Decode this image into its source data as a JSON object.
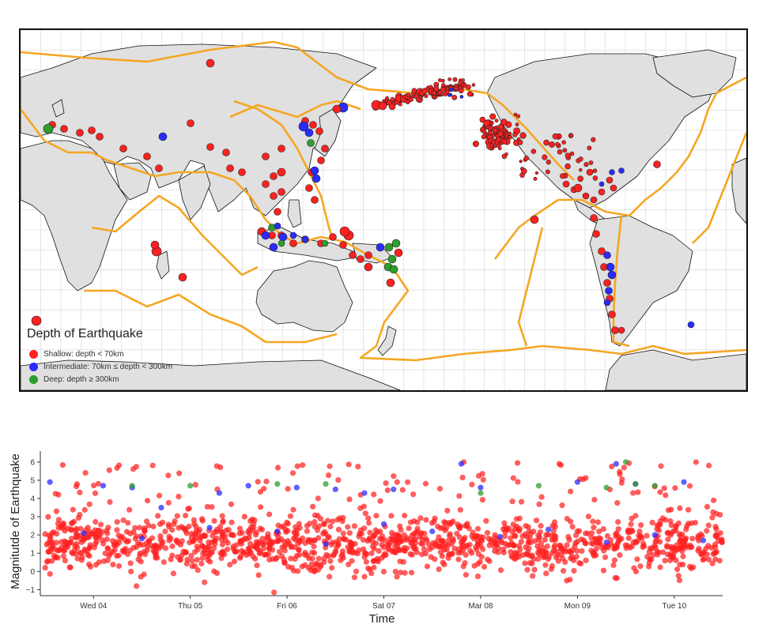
{
  "map": {
    "legend": {
      "title": "Depth of Earthquake",
      "items": [
        {
          "label": "Shallow: depth < 70km",
          "color": "#ff2020"
        },
        {
          "label": "Intermediate: 70km ≤ depth < 300km",
          "color": "#2b2bff"
        },
        {
          "label": "Deep: depth ≥ 300km",
          "color": "#2e9e2e"
        }
      ]
    },
    "colors": {
      "land": "#e0e0e0",
      "coast": "#111111",
      "plate_boundary": "#f5a623",
      "grid": "#d6d6d6"
    }
  },
  "chart_data": {
    "type": "scatter",
    "xlabel": "Time",
    "ylabel": "Magnitutde of Earthquake",
    "x_tick_labels": [
      "Wed 04",
      "Thu 05",
      "Fri 06",
      "Sat 07",
      "Mar 08",
      "Mon 09",
      "Tue 10"
    ],
    "y_ticks": [
      -1,
      0,
      1,
      2,
      3,
      4,
      5,
      6
    ],
    "ylim": [
      -1.2,
      6.6
    ],
    "x_range_days": [
      0,
      7.0
    ],
    "shallow_distribution": {
      "count": 1400,
      "mean_magnitude": 1.5,
      "sd": 0.75
    },
    "series": [
      {
        "name": "Shallow: depth < 70km",
        "color": "#ff2020"
      },
      {
        "name": "Intermediate: 70km ≤ depth < 300km",
        "color": "#2b2bff",
        "points": [
          [
            0.05,
            4.9
          ],
          [
            0.6,
            4.7
          ],
          [
            0.9,
            4.6
          ],
          [
            1.2,
            3.5
          ],
          [
            1.8,
            4.3
          ],
          [
            2.1,
            4.7
          ],
          [
            2.6,
            4.6
          ],
          [
            3.0,
            4.5
          ],
          [
            3.3,
            4.3
          ],
          [
            3.6,
            4.5
          ],
          [
            4.3,
            5.9
          ],
          [
            4.5,
            4.6
          ],
          [
            5.5,
            4.9
          ],
          [
            5.9,
            5.9
          ],
          [
            6.1,
            4.8
          ],
          [
            6.6,
            4.9
          ],
          [
            0.4,
            2.1
          ],
          [
            1.0,
            1.8
          ],
          [
            1.7,
            2.4
          ],
          [
            2.4,
            2.2
          ],
          [
            2.9,
            1.5
          ],
          [
            3.5,
            2.6
          ],
          [
            4.0,
            2.2
          ],
          [
            4.7,
            1.9
          ],
          [
            5.2,
            2.3
          ],
          [
            5.8,
            1.6
          ],
          [
            6.3,
            2.0
          ],
          [
            6.8,
            1.7
          ]
        ]
      },
      {
        "name": "Deep: depth ≥ 300km",
        "color": "#2e9e2e",
        "points": [
          [
            0.9,
            4.7
          ],
          [
            1.5,
            4.7
          ],
          [
            2.4,
            4.8
          ],
          [
            2.9,
            4.8
          ],
          [
            4.5,
            4.3
          ],
          [
            5.1,
            4.7
          ],
          [
            5.8,
            4.6
          ],
          [
            6.0,
            6.0
          ],
          [
            6.1,
            4.8
          ],
          [
            6.3,
            4.7
          ]
        ]
      }
    ]
  }
}
